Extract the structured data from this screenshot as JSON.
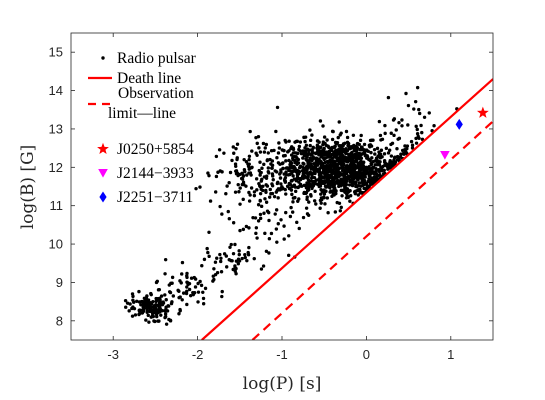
{
  "chart_data": {
    "type": "scatter",
    "xlabel": "log(P) [s]",
    "ylabel": "log(B) [G]",
    "xlim": [
      -3.5,
      1.5
    ],
    "ylim": [
      7.5,
      15.5
    ],
    "xticks": [
      "-3",
      "-2",
      "-1",
      "0",
      "1"
    ],
    "yticks": [
      "8",
      "9",
      "10",
      "11",
      "12",
      "13",
      "14",
      "15"
    ],
    "xtick_values": [
      -3,
      -2,
      -1,
      0,
      1
    ],
    "ytick_values": [
      8,
      9,
      10,
      11,
      12,
      13,
      14,
      15
    ],
    "grid": false,
    "legend_position": "top-left",
    "series": [
      {
        "name": "Radio pulsar",
        "kind": "points",
        "color": "#000000",
        "marker": "dot",
        "clusters": [
          {
            "center": [
              -0.3,
              12.0
            ],
            "spread": [
              0.32,
              0.38
            ],
            "count": 1050
          },
          {
            "center": [
              -0.85,
              11.85
            ],
            "spread": [
              0.38,
              0.5
            ],
            "count": 260
          },
          {
            "center": [
              -1.35,
              11.6
            ],
            "spread": [
              0.25,
              0.5
            ],
            "count": 70
          },
          {
            "center": [
              -2.55,
              8.35
            ],
            "spread": [
              0.13,
              0.17
            ],
            "count": 150
          },
          {
            "center": [
              -2.1,
              8.85
            ],
            "spread": [
              0.25,
              0.28
            ],
            "count": 60
          },
          {
            "center": [
              -1.6,
              9.6
            ],
            "spread": [
              0.2,
              0.28
            ],
            "count": 50
          },
          {
            "center": [
              -1.15,
              10.4
            ],
            "spread": [
              0.22,
              0.3
            ],
            "count": 30
          },
          {
            "center": [
              0.45,
              13.0
            ],
            "spread": [
              0.25,
              0.45
            ],
            "count": 40
          }
        ],
        "bound_line": {
          "slope": 2.0,
          "intercept": 11.35
        }
      },
      {
        "name": "Death line",
        "kind": "line",
        "color": "#ff0000",
        "style": "solid",
        "x": [
          -1.95,
          1.5
        ],
        "y": [
          7.5,
          14.3
        ]
      },
      {
        "name": "Observation limit—line",
        "legend_lines": [
          "Observation",
          "limit—line"
        ],
        "kind": "line",
        "color": "#ff0000",
        "style": "dashed",
        "x": [
          -1.35,
          1.5
        ],
        "y": [
          7.5,
          13.2
        ]
      },
      {
        "name": "J0250+5854",
        "kind": "point",
        "color": "#ff0000",
        "marker": "star",
        "x": [
          1.38
        ],
        "y": [
          13.42
        ]
      },
      {
        "name": "J2144−3933",
        "kind": "point",
        "color": "#ff00ff",
        "marker": "triangle-down",
        "x": [
          0.93
        ],
        "y": [
          12.32
        ]
      },
      {
        "name": "J2251−3711",
        "kind": "point",
        "color": "#0000ff",
        "marker": "diamond",
        "x": [
          1.1
        ],
        "y": [
          13.12
        ]
      }
    ]
  }
}
